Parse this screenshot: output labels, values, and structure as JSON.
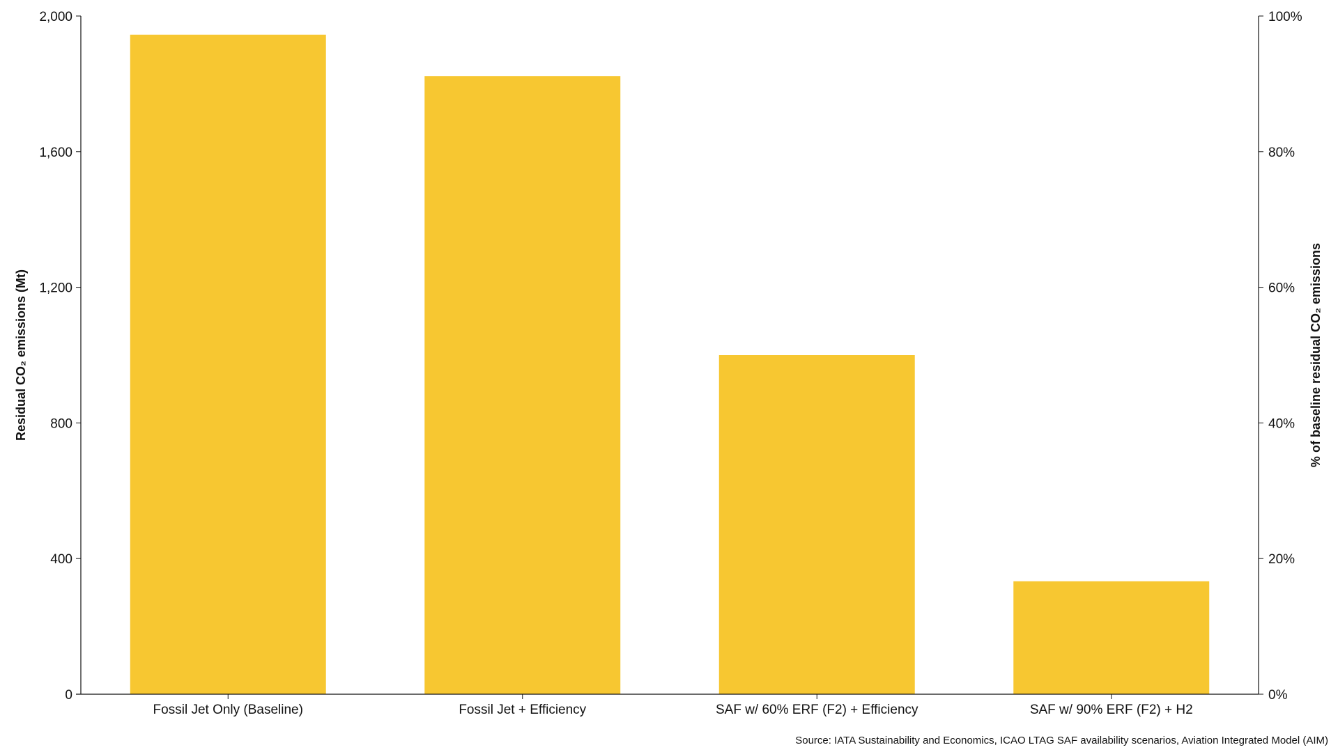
{
  "chart_data": {
    "type": "bar",
    "categories": [
      "Fossil Jet Only (Baseline)",
      "Fossil Jet + Efficiency",
      "SAF w/ 60% ERF (F2) + Efficiency",
      "SAF w/ 90% ERF (F2) + H2"
    ],
    "values": [
      1945,
      1823,
      1000,
      333
    ],
    "title": "",
    "xlabel": "",
    "ylabel": "Residual CO₂ emissions (Mt)",
    "ylim": [
      0,
      2000
    ],
    "yticks": [
      "0",
      "400",
      "800",
      "1,200",
      "1,600",
      "2,000"
    ],
    "y2label": "% of baseline residual CO₂ emissions",
    "y2lim": [
      0,
      100
    ],
    "y2ticks": [
      "0%",
      "20%",
      "40%",
      "60%",
      "80%",
      "100%"
    ],
    "bar_color": "#F7C731",
    "grid": false,
    "legend": "none"
  },
  "source_text": "Source: IATA Sustainability and Economics, ICAO LTAG SAF availability scenarios, Aviation Integrated Model (AIM)"
}
